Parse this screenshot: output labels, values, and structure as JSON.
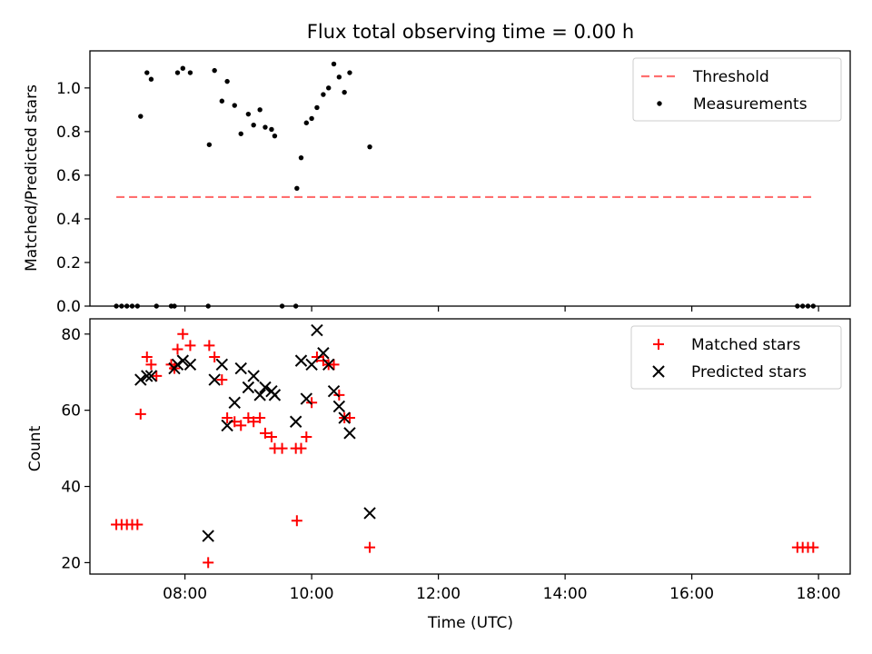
{
  "chart_data": [
    {
      "type": "scatter",
      "title": "Flux total observing time = 0.00 h",
      "xlabel": "",
      "ylabel": "Matched/Predicted stars",
      "xlim": [
        "06:30",
        "18:30"
      ],
      "ylim": [
        0,
        1.17
      ],
      "yticks": [
        "0.0",
        "0.2",
        "0.4",
        "0.6",
        "0.8",
        "1.0"
      ],
      "xticks_labeled": false,
      "legend_position": "top-right",
      "threshold": {
        "name": "Threshold",
        "value": 0.5,
        "x_range": [
          "06:55",
          "17:55"
        ],
        "color": "#ff6f6f",
        "style": "dashed"
      },
      "series": [
        {
          "name": "Measurements",
          "marker": "dot",
          "color": "#000000",
          "x": [
            "06:55",
            "07:00",
            "07:05",
            "07:10",
            "07:15",
            "07:18",
            "07:24",
            "07:28",
            "07:33",
            "07:47",
            "07:50",
            "07:53",
            "07:58",
            "08:05",
            "08:22",
            "08:23",
            "08:28",
            "08:35",
            "08:40",
            "08:47",
            "08:53",
            "09:00",
            "09:05",
            "09:11",
            "09:16",
            "09:22",
            "09:25",
            "09:32",
            "09:45",
            "09:46",
            "09:50",
            "09:55",
            "10:00",
            "10:05",
            "10:11",
            "10:16",
            "10:21",
            "10:26",
            "10:31",
            "10:36",
            "10:55"
          ],
          "y": [
            0,
            0,
            0,
            0,
            0,
            0.87,
            1.07,
            1.04,
            0,
            0,
            0,
            1.07,
            1.09,
            1.07,
            0,
            0.74,
            1.08,
            0.94,
            1.03,
            0.92,
            0.79,
            0.88,
            0.83,
            0.9,
            0.82,
            0.81,
            0.78,
            0,
            0,
            0.54,
            0.68,
            0.84,
            0.86,
            0.91,
            0.97,
            1.0,
            1.11,
            1.05,
            0.98,
            1.07,
            0.73
          ]
        },
        {
          "name": "",
          "marker": "dot",
          "color": "#000000",
          "x": [
            "17:40",
            "17:45",
            "17:50",
            "17:55"
          ],
          "y": [
            0,
            0,
            0,
            0
          ]
        }
      ]
    },
    {
      "type": "scatter",
      "title": "",
      "xlabel": "Time (UTC)",
      "ylabel": "Count",
      "xlim": [
        "06:30",
        "18:30"
      ],
      "ylim": [
        17,
        84
      ],
      "yticks": [
        "20",
        "40",
        "60",
        "80"
      ],
      "xticks": [
        "08:00",
        "10:00",
        "12:00",
        "14:00",
        "16:00",
        "18:00"
      ],
      "legend_position": "top-right",
      "series": [
        {
          "name": "Matched stars",
          "marker": "plus",
          "color": "#ff0000",
          "x": [
            "06:55",
            "07:00",
            "07:05",
            "07:10",
            "07:15",
            "07:18",
            "07:24",
            "07:28",
            "07:33",
            "07:47",
            "07:50",
            "07:53",
            "07:58",
            "08:05",
            "08:22",
            "08:23",
            "08:28",
            "08:35",
            "08:40",
            "08:47",
            "08:53",
            "09:00",
            "09:05",
            "09:11",
            "09:16",
            "09:22",
            "09:25",
            "09:32",
            "09:45",
            "09:46",
            "09:50",
            "09:55",
            "10:00",
            "10:05",
            "10:11",
            "10:16",
            "10:21",
            "10:26",
            "10:31",
            "10:36",
            "10:55",
            "17:40",
            "17:45",
            "17:50",
            "17:55"
          ],
          "y": [
            30,
            30,
            30,
            30,
            30,
            59,
            74,
            72,
            69,
            72,
            71,
            76,
            80,
            77,
            20,
            77,
            74,
            68,
            58,
            57,
            56,
            58,
            57,
            58,
            54,
            53,
            50,
            50,
            50,
            31,
            50,
            53,
            62,
            74,
            73,
            72,
            72,
            64,
            58,
            58,
            24,
            24,
            24,
            24,
            24
          ]
        },
        {
          "name": "Predicted stars",
          "marker": "x",
          "color": "#000000",
          "x": [
            "07:18",
            "07:24",
            "07:28",
            "07:50",
            "07:53",
            "07:58",
            "08:05",
            "08:22",
            "08:28",
            "08:35",
            "08:40",
            "08:47",
            "08:53",
            "09:00",
            "09:05",
            "09:11",
            "09:16",
            "09:22",
            "09:25",
            "09:45",
            "09:50",
            "09:55",
            "10:00",
            "10:05",
            "10:11",
            "10:16",
            "10:21",
            "10:26",
            "10:31",
            "10:36",
            "10:55"
          ],
          "y": [
            68,
            69,
            69,
            71,
            72,
            73,
            72,
            27,
            68,
            72,
            56,
            62,
            71,
            66,
            69,
            64,
            66,
            65,
            64,
            57,
            73,
            63,
            72,
            81,
            75,
            72,
            65,
            61,
            58,
            54,
            33
          ]
        }
      ]
    }
  ]
}
